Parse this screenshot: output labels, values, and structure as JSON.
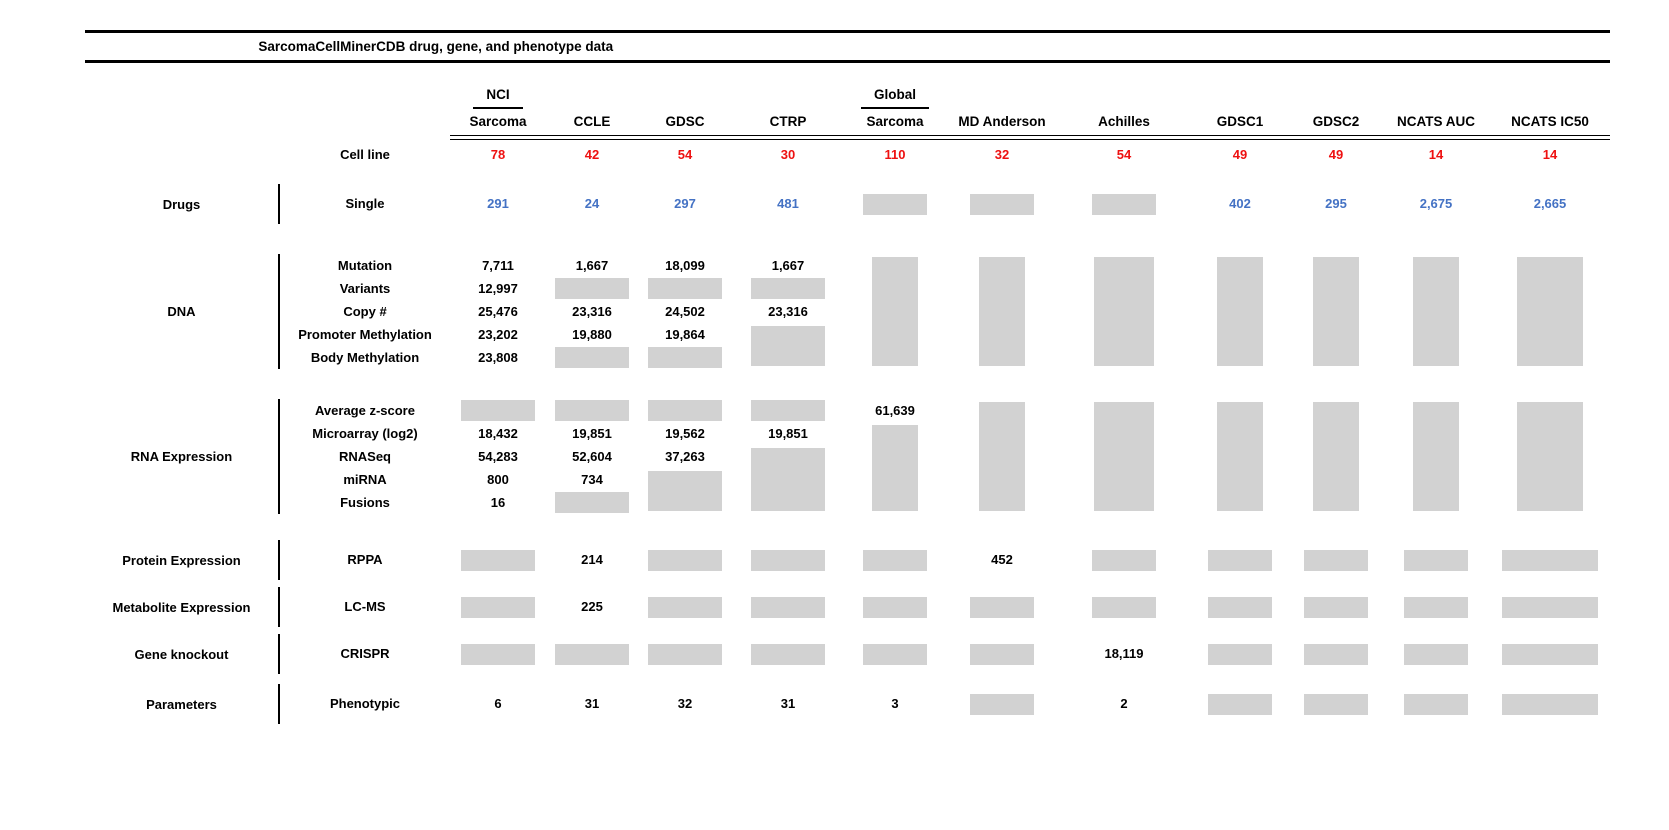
{
  "title": "SarcomaCellMinerCDB drug, gene, and phenotype data",
  "colors": {
    "cell_line_count_red": "#ee1111",
    "drug_count_blue": "#4472c4",
    "no_data_box_gray": "#d2d2d2",
    "rule_black": "#000000"
  },
  "chart_data": {
    "type": "table",
    "title": "SarcomaCellMinerCDB drug, gene, and phenotype data",
    "cell_line_label": "Cell line",
    "columns": [
      {
        "top": "NCI",
        "label": "Sarcoma",
        "cell_lines": "78"
      },
      {
        "label": "CCLE",
        "cell_lines": "42"
      },
      {
        "label": "GDSC",
        "cell_lines": "54"
      },
      {
        "label": "CTRP",
        "cell_lines": "30"
      },
      {
        "top": "Global",
        "label": "Sarcoma",
        "cell_lines": "110"
      },
      {
        "label": "MD Anderson",
        "cell_lines": "32"
      },
      {
        "label": "Achilles",
        "cell_lines": "54"
      },
      {
        "label": "GDSC1",
        "cell_lines": "49"
      },
      {
        "label": "GDSC2",
        "cell_lines": "49"
      },
      {
        "label": "NCATS AUC",
        "cell_lines": "14"
      },
      {
        "label": "NCATS IC50",
        "cell_lines": "14"
      }
    ],
    "box_code_note": "cells coded B<n> are gray no-data boxes spanning n rows; empty string = covered by a spanning box or blank",
    "sections": [
      {
        "category": "Drugs",
        "value_style": "blue",
        "rows": [
          {
            "label": "Single",
            "cells": [
              "291",
              "24",
              "297",
              "481",
              "B1",
              "B1",
              "B1",
              "402",
              "295",
              "2,675",
              "2,665"
            ]
          }
        ]
      },
      {
        "category": "DNA",
        "rows": [
          {
            "label": "Mutation",
            "cells": [
              "7,711",
              "1,667",
              "18,099",
              "1,667",
              "B5",
              "B5",
              "B5",
              "B5",
              "B5",
              "B5",
              "B5"
            ]
          },
          {
            "label": "Variants",
            "cells": [
              "12,997",
              "B1",
              "B1",
              "B1",
              "",
              "",
              "",
              "",
              "",
              "",
              ""
            ]
          },
          {
            "label": "Copy #",
            "cells": [
              "25,476",
              "23,316",
              "24,502",
              "23,316",
              "",
              "",
              "",
              "",
              "",
              "",
              ""
            ]
          },
          {
            "label": "Promoter Methylation",
            "cells": [
              "23,202",
              "19,880",
              "19,864",
              "B2",
              "",
              "",
              "",
              "",
              "",
              "",
              ""
            ]
          },
          {
            "label": "Body Methylation",
            "cells": [
              "23,808",
              "B1",
              "B1",
              "",
              "",
              "",
              "",
              "",
              "",
              "",
              ""
            ]
          }
        ]
      },
      {
        "category": "RNA Expression",
        "rows": [
          {
            "label": "Average z-score",
            "cells": [
              "B1",
              "B1",
              "B1",
              "B1",
              "61,639",
              "B5",
              "B5",
              "B5",
              "B5",
              "B5",
              "B5"
            ]
          },
          {
            "label": "Microarray (log2)",
            "cells": [
              "18,432",
              "19,851",
              "19,562",
              "19,851",
              "B4",
              "",
              "",
              "",
              "",
              "",
              ""
            ]
          },
          {
            "label": "RNASeq",
            "cells": [
              "54,283",
              "52,604",
              "37,263",
              "B3",
              "",
              "",
              "",
              "",
              "",
              "",
              ""
            ]
          },
          {
            "label": "miRNA",
            "cells": [
              "800",
              "734",
              "B2",
              "",
              "",
              "",
              "",
              "",
              "",
              "",
              ""
            ]
          },
          {
            "label": "Fusions",
            "cells": [
              "16",
              "B1",
              "",
              "",
              "",
              "",
              "",
              "",
              "",
              "",
              ""
            ]
          }
        ]
      },
      {
        "category": "Protein Expression",
        "rows": [
          {
            "label": "RPPA",
            "cells": [
              "B1",
              "214",
              "B1",
              "B1",
              "B1",
              "452",
              "B1",
              "B1",
              "B1",
              "B1",
              "B1"
            ]
          }
        ]
      },
      {
        "category": "Metabolite Expression",
        "rows": [
          {
            "label": "LC-MS",
            "cells": [
              "B1",
              "225",
              "B1",
              "B1",
              "B1",
              "B1",
              "B1",
              "B1",
              "B1",
              "B1",
              "B1"
            ]
          }
        ]
      },
      {
        "category": "Gene knockout",
        "rows": [
          {
            "label": "CRISPR",
            "cells": [
              "B1",
              "B1",
              "B1",
              "B1",
              "B1",
              "B1",
              "18,119",
              "B1",
              "B1",
              "B1",
              "B1"
            ]
          }
        ]
      },
      {
        "category": "Parameters",
        "rows": [
          {
            "label": "Phenotypic",
            "cells": [
              "6",
              "31",
              "32",
              "31",
              "3",
              "B1",
              "2",
              "B1",
              "B1",
              "B1",
              "B1"
            ]
          }
        ]
      }
    ]
  }
}
